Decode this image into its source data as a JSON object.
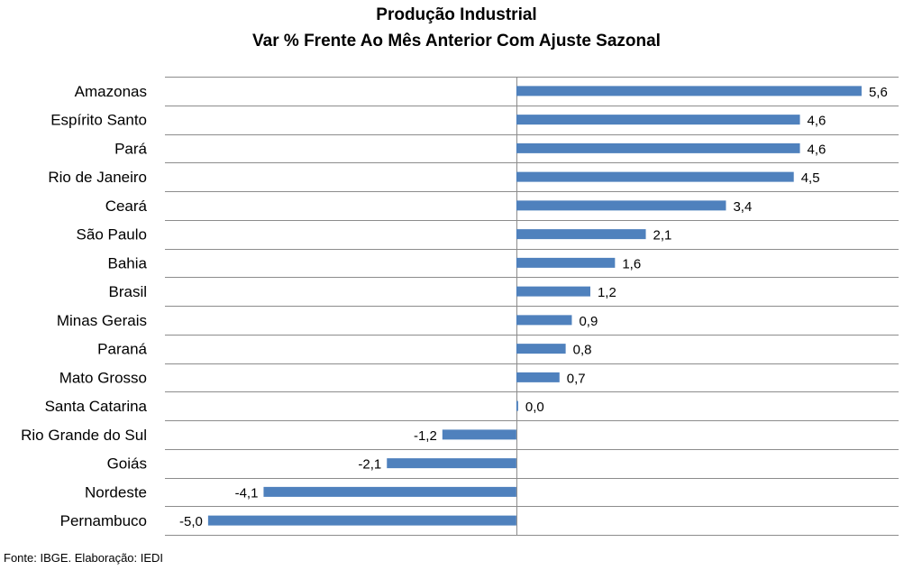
{
  "chart_data": {
    "type": "bar",
    "orientation": "horizontal",
    "title": "Produção Industrial",
    "subtitle": "Var % Frente Ao Mês Anterior Com Ajuste Sazonal",
    "categories": [
      "Amazonas",
      "Espírito Santo",
      "Pará",
      "Rio de Janeiro",
      "Ceará",
      "São Paulo",
      "Bahia",
      "Brasil",
      "Minas Gerais",
      "Paraná",
      "Mato Grosso",
      "Santa Catarina",
      "Rio Grande do Sul",
      "Goiás",
      "Nordeste",
      "Pernambuco"
    ],
    "values": [
      5.6,
      4.6,
      4.6,
      4.5,
      3.4,
      2.1,
      1.6,
      1.2,
      0.9,
      0.8,
      0.7,
      0.0,
      -1.2,
      -2.1,
      -4.1,
      -5.0
    ],
    "data_labels": [
      "5,6",
      "4,6",
      "4,6",
      "4,5",
      "3,4",
      "2,1",
      "1,6",
      "1,2",
      "0,9",
      "0,8",
      "0,7",
      "0,0",
      "-1,2",
      "-2,1",
      "-4,1",
      "-5,0"
    ],
    "xlim": [
      -5.7,
      6.2
    ],
    "bar_color": "#4f81bd",
    "grid": true,
    "legend": "none"
  },
  "source_note": "Fonte: IBGE. Elaboração: IEDI"
}
